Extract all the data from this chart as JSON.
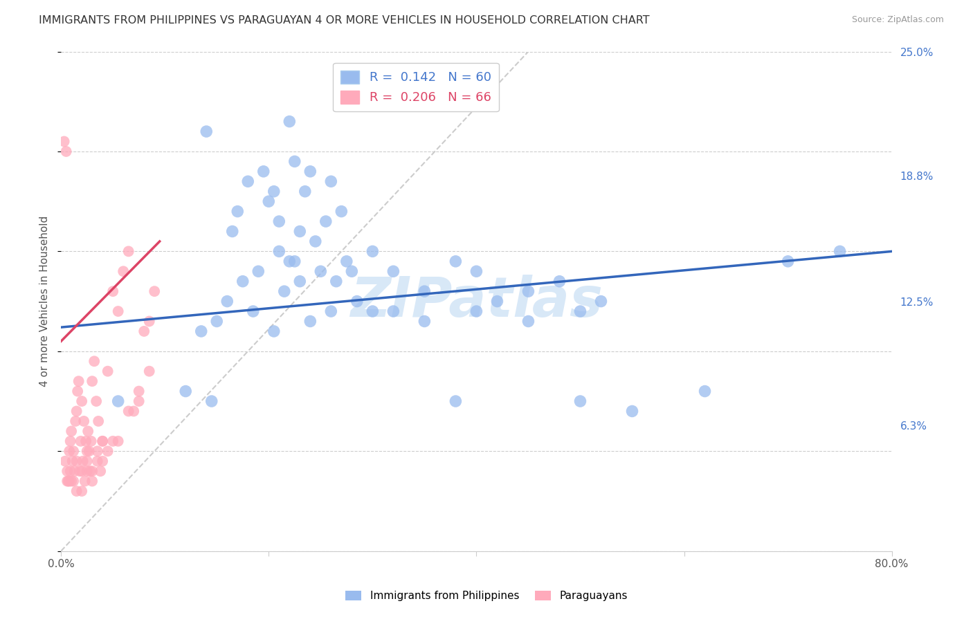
{
  "title": "IMMIGRANTS FROM PHILIPPINES VS PARAGUAYAN 4 OR MORE VEHICLES IN HOUSEHOLD CORRELATION CHART",
  "source": "Source: ZipAtlas.com",
  "ylabel": "4 or more Vehicles in Household",
  "xmin": 0.0,
  "xmax": 80.0,
  "ymin": 0.0,
  "ymax": 25.0,
  "blue_R": 0.142,
  "blue_N": 60,
  "pink_R": 0.206,
  "pink_N": 66,
  "blue_color": "#99BBEE",
  "pink_color": "#FFAABB",
  "blue_line_color": "#3366BB",
  "pink_line_color": "#DD4466",
  "watermark": "ZIPatlas",
  "watermark_color": "#AACCEE",
  "blue_scatter_x": [
    5.5,
    14.0,
    22.0,
    18.0,
    19.5,
    17.0,
    20.5,
    22.5,
    24.0,
    21.0,
    16.5,
    20.0,
    23.5,
    26.0,
    21.0,
    23.0,
    25.5,
    27.0,
    22.0,
    24.5,
    17.5,
    19.0,
    22.5,
    21.5,
    25.0,
    23.0,
    28.0,
    30.0,
    26.5,
    27.5,
    32.0,
    38.0,
    35.0,
    40.0,
    45.0,
    42.0,
    48.0,
    50.0,
    52.0,
    30.0,
    15.0,
    13.5,
    16.0,
    18.5,
    20.5,
    24.0,
    26.0,
    28.5,
    32.0,
    35.0,
    40.0,
    45.0,
    50.0,
    55.0,
    62.0,
    70.0,
    75.0,
    38.0,
    14.5,
    12.0
  ],
  "blue_scatter_y": [
    7.5,
    21.0,
    21.5,
    18.5,
    19.0,
    17.0,
    18.0,
    19.5,
    19.0,
    16.5,
    16.0,
    17.5,
    18.0,
    18.5,
    15.0,
    16.0,
    16.5,
    17.0,
    14.5,
    15.5,
    13.5,
    14.0,
    14.5,
    13.0,
    14.0,
    13.5,
    14.0,
    15.0,
    13.5,
    14.5,
    14.0,
    14.5,
    13.0,
    14.0,
    13.0,
    12.5,
    13.5,
    12.0,
    12.5,
    12.0,
    11.5,
    11.0,
    12.5,
    12.0,
    11.0,
    11.5,
    12.0,
    12.5,
    12.0,
    11.5,
    12.0,
    11.5,
    7.5,
    7.0,
    8.0,
    14.5,
    15.0,
    7.5,
    7.5,
    8.0
  ],
  "pink_scatter_x": [
    0.3,
    0.5,
    0.6,
    0.7,
    0.8,
    0.9,
    1.0,
    1.1,
    1.2,
    1.3,
    1.4,
    1.5,
    1.6,
    1.7,
    1.8,
    1.9,
    2.0,
    2.1,
    2.2,
    2.3,
    2.4,
    2.5,
    2.6,
    2.7,
    2.8,
    2.9,
    3.0,
    3.2,
    3.4,
    3.6,
    3.8,
    4.0,
    4.5,
    5.0,
    5.5,
    6.0,
    6.5,
    7.0,
    7.5,
    8.0,
    8.5,
    9.0,
    3.0,
    2.0,
    1.5,
    0.8,
    1.2,
    2.5,
    3.5,
    4.5,
    5.5,
    6.5,
    7.5,
    8.5,
    0.4,
    1.0,
    2.0,
    3.0,
    4.0,
    5.0,
    0.6,
    1.5,
    2.5,
    3.5,
    4.0,
    0.9
  ],
  "pink_scatter_y": [
    20.5,
    20.0,
    4.0,
    3.5,
    5.0,
    5.5,
    6.0,
    4.5,
    5.0,
    4.0,
    6.5,
    7.0,
    8.0,
    8.5,
    4.0,
    5.5,
    7.5,
    4.5,
    6.5,
    3.5,
    5.5,
    4.0,
    6.0,
    5.0,
    4.0,
    5.5,
    8.5,
    9.5,
    7.5,
    6.5,
    4.0,
    5.5,
    9.0,
    13.0,
    12.0,
    14.0,
    15.0,
    7.0,
    8.0,
    11.0,
    11.5,
    13.0,
    3.5,
    3.0,
    3.0,
    3.5,
    3.5,
    4.5,
    4.5,
    5.0,
    5.5,
    7.0,
    7.5,
    9.0,
    4.5,
    3.5,
    4.0,
    4.0,
    4.5,
    5.5,
    3.5,
    4.5,
    5.0,
    5.0,
    5.5,
    4.0
  ],
  "blue_trend_x0": 0.0,
  "blue_trend_y0": 11.2,
  "blue_trend_x1": 80.0,
  "blue_trend_y1": 15.0,
  "pink_trend_x0": 0.0,
  "pink_trend_y0": 10.5,
  "pink_trend_x1": 9.5,
  "pink_trend_y1": 15.5,
  "diag_x0": 0.0,
  "diag_y0": 0.0,
  "diag_x1": 45.0,
  "diag_y1": 25.0
}
